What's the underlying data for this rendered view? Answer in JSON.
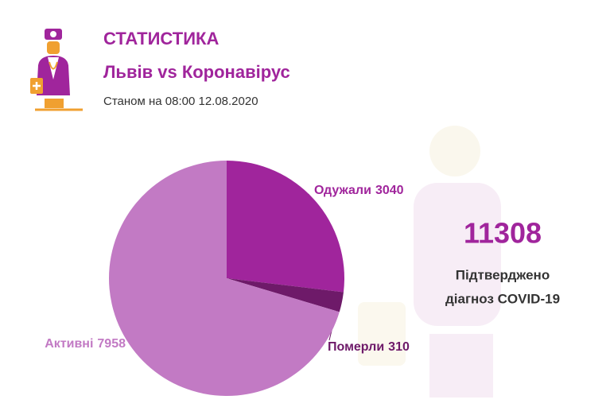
{
  "header": {
    "title": "СТАТИСТИКА",
    "subtitle": "Львів vs Коронавірус",
    "note": "Станом на 08:00 12.08.2020"
  },
  "chart_data": {
    "type": "pie",
    "categories": [
      "Одужали",
      "Померли",
      "Активні"
    ],
    "values": [
      3040,
      310,
      7958
    ],
    "colors": [
      "#a0259c",
      "#6e1a69",
      "#c27ac4"
    ]
  },
  "summary": {
    "total": 11308,
    "caption": [
      "Підтверджено",
      "діагноз COVID-19"
    ]
  }
}
